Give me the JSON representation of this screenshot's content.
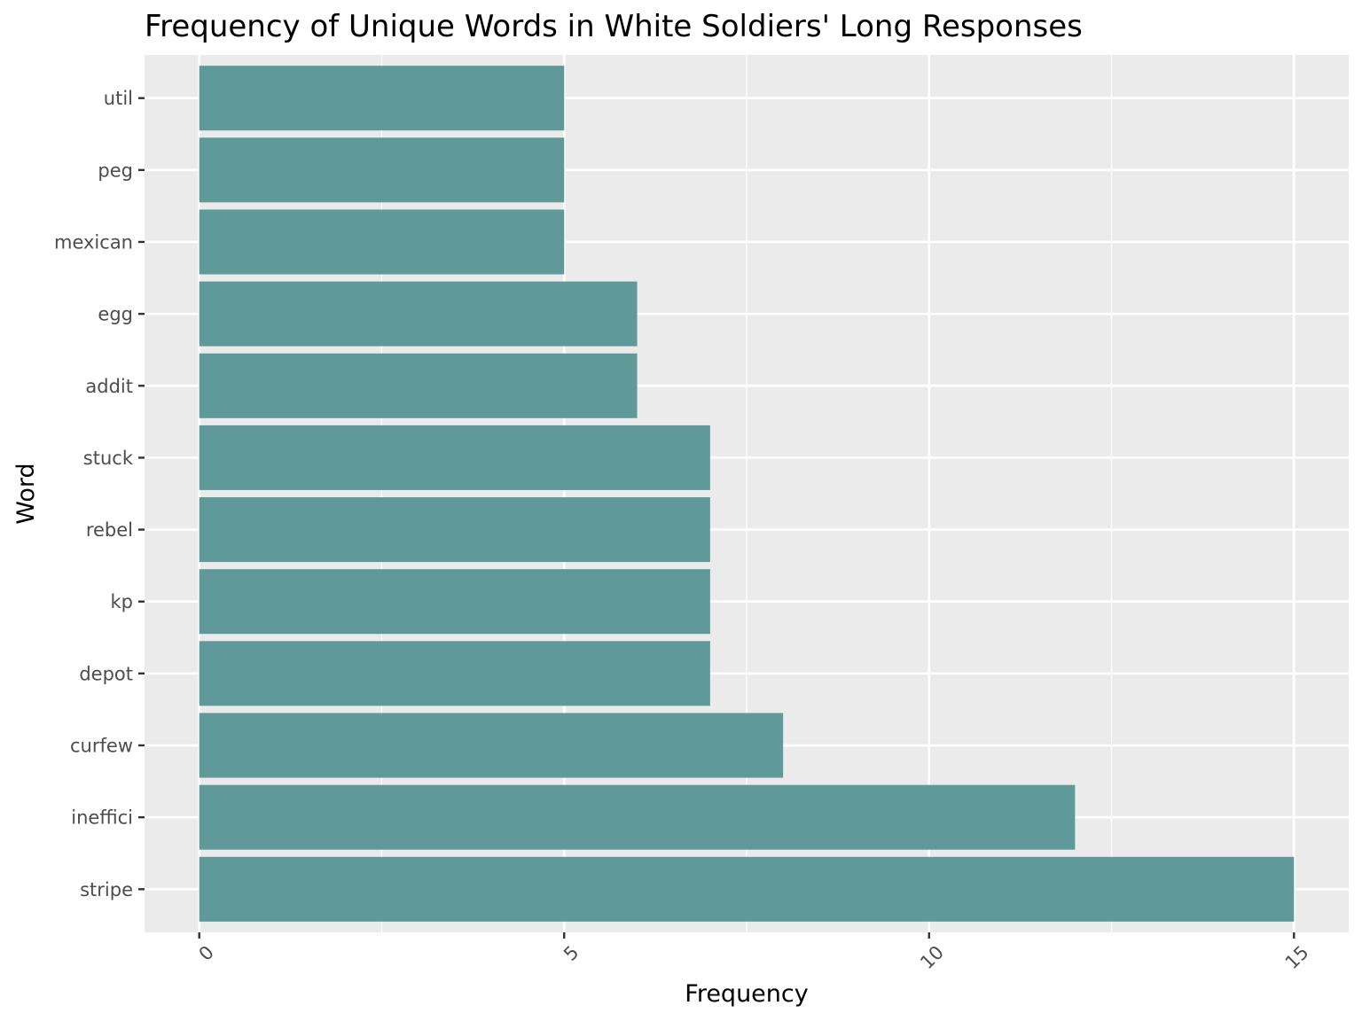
{
  "chart_data": {
    "type": "bar",
    "orientation": "horizontal",
    "title": "Frequency of Unique Words in White Soldiers' Long Responses",
    "xlabel": "Frequency",
    "ylabel": "Word",
    "categories": [
      "util",
      "peg",
      "mexican",
      "egg",
      "addit",
      "stuck",
      "rebel",
      "kp",
      "depot",
      "curfew",
      "ineffici",
      "stripe"
    ],
    "values": [
      5,
      5,
      5,
      6,
      6,
      7,
      7,
      7,
      7,
      8,
      12,
      15
    ],
    "xlim": [
      -0.75,
      15.75
    ],
    "x_ticks": [
      "0",
      "5",
      "10",
      "15"
    ],
    "x_tick_values": [
      0,
      5,
      10,
      15
    ],
    "x_minor_ticks": [
      2.5,
      7.5,
      12.5
    ],
    "grid": true,
    "colors": {
      "bar": "#5f9999",
      "panel": "#ebebeb",
      "grid": "#ffffff",
      "tick_text": "#4d4d4d"
    }
  }
}
